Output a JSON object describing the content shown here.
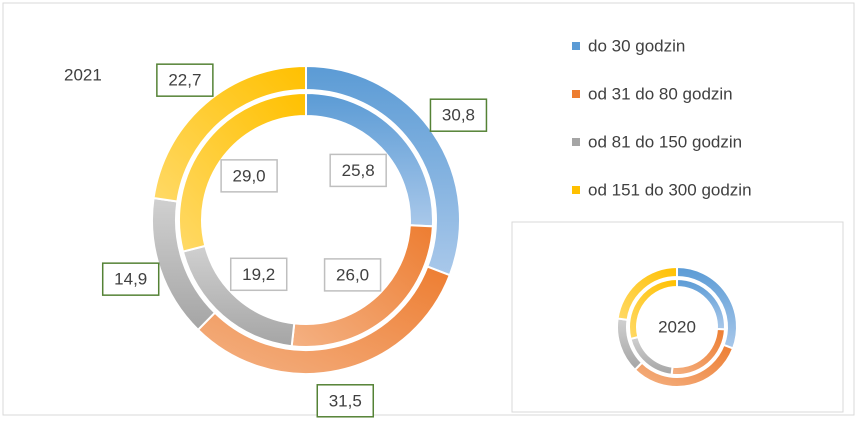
{
  "chart_data": {
    "type": "doughnut",
    "categories": [
      "do 30 godzin",
      "od 31 do 80 godzin",
      "od 81 do 150 godzin",
      "od 151 do 300 godzin"
    ],
    "colors": [
      "#5b9bd5",
      "#ed7d31",
      "#a5a5a5",
      "#ffc000"
    ],
    "series": [
      {
        "name": "2021",
        "values": [
          30.8,
          31.5,
          14.9,
          22.7
        ],
        "value_labels": [
          "30,8",
          "31,5",
          "14,9",
          "22,7"
        ]
      },
      {
        "name": "2020",
        "values": [
          25.8,
          26.0,
          19.2,
          29.0
        ],
        "value_labels": [
          "25,8",
          "26,0",
          "19,2",
          "29,0"
        ]
      }
    ]
  }
}
